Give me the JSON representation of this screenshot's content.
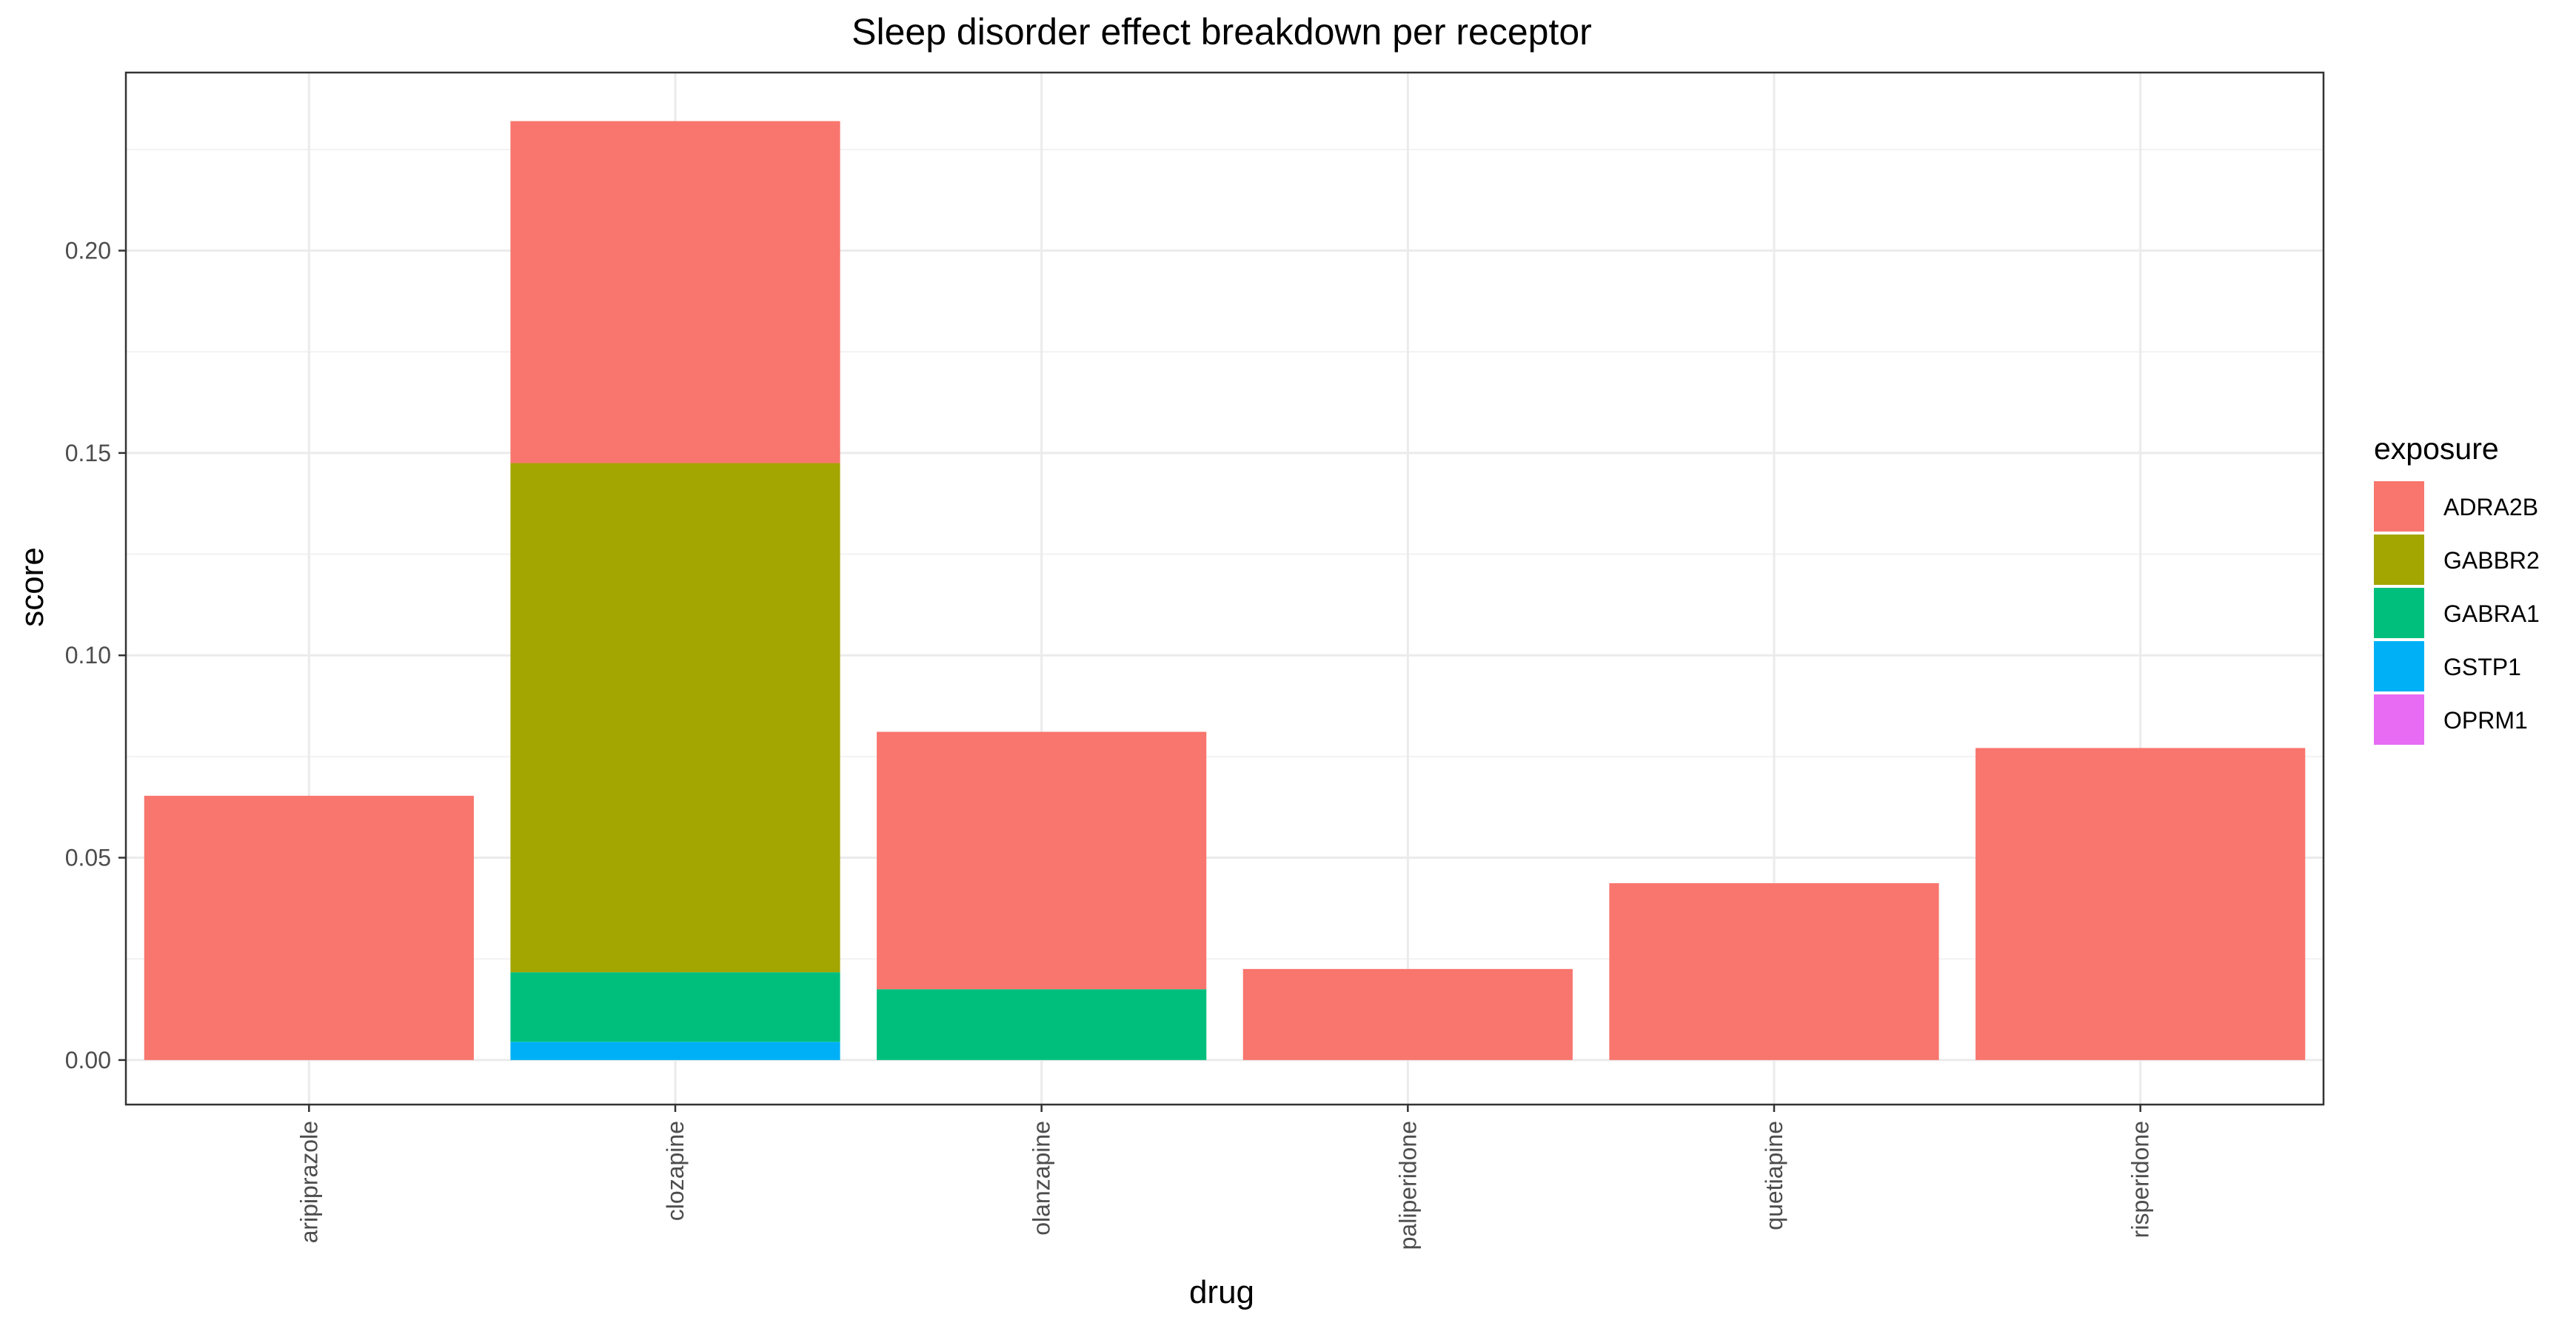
{
  "chart_data": {
    "type": "bar",
    "stacked": true,
    "title": "Sleep disorder effect breakdown per receptor",
    "xlabel": "drug",
    "ylabel": "score",
    "categories": [
      "aripiprazole",
      "clozapine",
      "olanzapine",
      "paliperidone",
      "quetiapine",
      "risperidone"
    ],
    "ylim": [
      -0.011,
      0.244
    ],
    "yticks": [
      0.0,
      0.05,
      0.1,
      0.15,
      0.2
    ],
    "ytick_labels": [
      "0.00",
      "0.05",
      "0.10",
      "0.15",
      "0.20"
    ],
    "grid": true,
    "legend": {
      "title": "exposure",
      "position": "right"
    },
    "series": [
      {
        "name": "ADRA2B",
        "color": "#F8766D",
        "values": [
          0.0653,
          0.0845,
          0.0636,
          0.0225,
          0.0437,
          0.0771
        ]
      },
      {
        "name": "GABBR2",
        "color": "#A3A500",
        "values": [
          0,
          0.1258,
          0,
          0,
          0,
          0
        ]
      },
      {
        "name": "GABRA1",
        "color": "#00BF7D",
        "values": [
          0,
          0.0172,
          0.0175,
          0,
          0,
          0
        ]
      },
      {
        "name": "GSTP1",
        "color": "#00B0F6",
        "values": [
          0,
          0.0045,
          0,
          0,
          0,
          0
        ]
      },
      {
        "name": "OPRM1",
        "color": "#E76BF3",
        "values": [
          0,
          0,
          0,
          0,
          0,
          0
        ]
      }
    ]
  }
}
